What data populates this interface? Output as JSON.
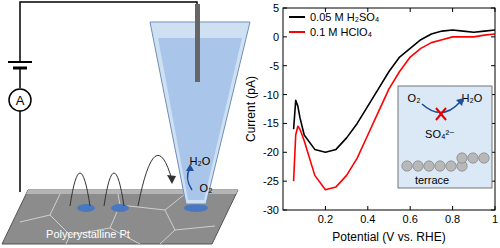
{
  "chart_data": {
    "type": "line",
    "x_label": "Potential (V vs. RHE)",
    "y_label": "Current (pA)",
    "x": [
      0.05,
      0.06,
      0.07,
      0.08,
      0.1,
      0.15,
      0.2,
      0.25,
      0.3,
      0.35,
      0.4,
      0.45,
      0.5,
      0.55,
      0.6,
      0.65,
      0.7,
      0.75,
      0.8,
      0.85,
      0.9,
      0.95,
      1.0
    ],
    "series": [
      {
        "name": "0.05 M H₂SO₄",
        "color": "#000000",
        "values": [
          -16,
          -11,
          -12,
          -14,
          -17,
          -19.5,
          -20,
          -19.5,
          -17.5,
          -15,
          -12,
          -9,
          -6,
          -3.5,
          -2,
          -0.5,
          0.5,
          1,
          1.2,
          1,
          0.8,
          1,
          1.2
        ]
      },
      {
        "name": "0.1 M HClO₄",
        "color": "#ff0000",
        "values": [
          -25,
          -17,
          -15.5,
          -16,
          -18,
          -24,
          -26.5,
          -26,
          -24,
          -21,
          -17,
          -13,
          -9,
          -6,
          -3.5,
          -2,
          -1,
          -0.5,
          0,
          0,
          0,
          0.3,
          0.5
        ]
      }
    ],
    "xlim": [
      0,
      1
    ],
    "xticks": [
      0.2,
      0.4,
      0.6,
      0.8,
      1
    ],
    "ylim": [
      -30,
      5
    ],
    "yticks": [
      -30,
      -25,
      -20,
      -15,
      -10,
      -5,
      0,
      5
    ],
    "legend": "top-left",
    "annotations": [
      "O₂",
      "H₂O",
      "SO₄²⁻",
      "terrace"
    ]
  },
  "diagram": {
    "ammeter": "A",
    "reactant": "O₂",
    "product": "H₂O",
    "substrate": "Polycrystalline Pt"
  }
}
